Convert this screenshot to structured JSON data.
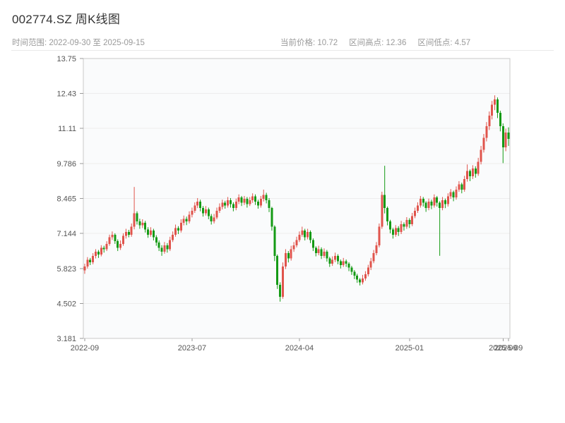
{
  "header": {
    "title": "002774.SZ 周K线图",
    "date_range_label": "时间范围: 2022-09-30 至 2025-09-15",
    "stats": {
      "current": "当前价格: 10.72",
      "high": "区间高点: 12.36",
      "low": "区间低点: 4.57"
    }
  },
  "chart_data": {
    "type": "candlestick",
    "title": "002774.SZ 周K线图",
    "interval": "weekly",
    "start_date": "2022-09-30",
    "end_date": "2025-09-15",
    "current_price": 10.72,
    "range_high": 12.36,
    "range_low": 4.57,
    "ylim": [
      3.181,
      13.75
    ],
    "y_ticks": [
      {
        "value": 3.181,
        "label": "3.181"
      },
      {
        "value": 4.502,
        "label": "4.502"
      },
      {
        "value": 5.823,
        "label": "5.823"
      },
      {
        "value": 7.144,
        "label": "7.144"
      },
      {
        "value": 8.465,
        "label": "8.465"
      },
      {
        "value": 9.786,
        "label": "9.786"
      },
      {
        "value": 11.11,
        "label": "11.11"
      },
      {
        "value": 12.43,
        "label": "12.43"
      },
      {
        "value": 13.75,
        "label": "13.75"
      }
    ],
    "x_ticks": [
      {
        "index": 0,
        "label": "2022-09"
      },
      {
        "index": 39,
        "label": "2023-07"
      },
      {
        "index": 78,
        "label": "2024-04"
      },
      {
        "index": 118,
        "label": "2025-01"
      },
      {
        "index": 152,
        "label": "2025-09"
      },
      {
        "index": 154,
        "label": "2025-09"
      }
    ],
    "colors": {
      "up": "#e0544c",
      "down": "#149a14",
      "grid": "#ededed",
      "axis": "#c9c9c9",
      "tick_text": "#555555",
      "plot_bg": "#fafbfc"
    },
    "candles": [
      [
        5.75,
        6.0,
        5.62,
        5.9
      ],
      [
        5.9,
        6.25,
        5.82,
        6.15
      ],
      [
        6.15,
        6.22,
        5.95,
        6.05
      ],
      [
        6.05,
        6.4,
        5.98,
        6.3
      ],
      [
        6.3,
        6.55,
        6.2,
        6.45
      ],
      [
        6.45,
        6.52,
        6.22,
        6.35
      ],
      [
        6.35,
        6.7,
        6.28,
        6.6
      ],
      [
        6.6,
        6.68,
        6.42,
        6.55
      ],
      [
        6.55,
        6.85,
        6.48,
        6.75
      ],
      [
        6.75,
        7.1,
        6.68,
        7.0
      ],
      [
        7.0,
        7.22,
        6.9,
        7.1
      ],
      [
        7.1,
        7.15,
        6.75,
        6.85
      ],
      [
        6.85,
        6.92,
        6.48,
        6.6
      ],
      [
        6.6,
        6.88,
        6.52,
        6.75
      ],
      [
        6.75,
        7.15,
        6.68,
        7.05
      ],
      [
        7.05,
        7.32,
        6.95,
        7.2
      ],
      [
        7.2,
        7.28,
        7.0,
        7.1
      ],
      [
        7.1,
        7.52,
        7.02,
        7.4
      ],
      [
        7.4,
        8.9,
        7.3,
        7.9
      ],
      [
        7.9,
        7.98,
        7.48,
        7.6
      ],
      [
        7.6,
        7.7,
        7.32,
        7.45
      ],
      [
        7.45,
        7.68,
        7.35,
        7.55
      ],
      [
        7.55,
        7.62,
        7.18,
        7.3
      ],
      [
        7.3,
        7.38,
        6.98,
        7.1
      ],
      [
        7.1,
        7.38,
        7.02,
        7.25
      ],
      [
        7.25,
        7.32,
        6.88,
        7.0
      ],
      [
        7.0,
        7.08,
        6.68,
        6.8
      ],
      [
        6.8,
        6.88,
        6.48,
        6.6
      ],
      [
        6.6,
        6.7,
        6.3,
        6.45
      ],
      [
        6.45,
        6.82,
        6.38,
        6.7
      ],
      [
        6.7,
        6.78,
        6.42,
        6.55
      ],
      [
        6.55,
        7.02,
        6.48,
        6.9
      ],
      [
        6.9,
        7.22,
        6.82,
        7.1
      ],
      [
        7.1,
        7.48,
        7.02,
        7.35
      ],
      [
        7.35,
        7.42,
        7.12,
        7.25
      ],
      [
        7.25,
        7.68,
        7.18,
        7.55
      ],
      [
        7.55,
        7.82,
        7.45,
        7.7
      ],
      [
        7.7,
        7.78,
        7.46,
        7.6
      ],
      [
        7.6,
        7.98,
        7.52,
        7.85
      ],
      [
        7.85,
        8.12,
        7.75,
        8.0
      ],
      [
        8.0,
        8.32,
        7.92,
        8.2
      ],
      [
        8.2,
        8.48,
        8.1,
        8.35
      ],
      [
        8.35,
        8.42,
        7.98,
        8.1
      ],
      [
        8.1,
        8.18,
        7.78,
        7.9
      ],
      [
        7.9,
        8.18,
        7.82,
        8.05
      ],
      [
        8.05,
        8.12,
        7.68,
        7.8
      ],
      [
        7.8,
        7.88,
        7.48,
        7.6
      ],
      [
        7.6,
        7.88,
        7.52,
        7.75
      ],
      [
        7.75,
        8.12,
        7.68,
        8.0
      ],
      [
        8.0,
        8.28,
        7.92,
        8.15
      ],
      [
        8.15,
        8.42,
        8.05,
        8.3
      ],
      [
        8.3,
        8.38,
        8.08,
        8.2
      ],
      [
        8.2,
        8.52,
        8.12,
        8.4
      ],
      [
        8.4,
        8.48,
        8.12,
        8.25
      ],
      [
        8.25,
        8.32,
        7.98,
        8.1
      ],
      [
        8.1,
        8.46,
        8.02,
        8.35
      ],
      [
        8.35,
        8.62,
        8.25,
        8.5
      ],
      [
        8.5,
        8.56,
        8.18,
        8.3
      ],
      [
        8.3,
        8.56,
        8.22,
        8.45
      ],
      [
        8.45,
        8.52,
        8.12,
        8.25
      ],
      [
        8.25,
        8.52,
        8.18,
        8.4
      ],
      [
        8.4,
        8.66,
        8.3,
        8.55
      ],
      [
        8.55,
        8.62,
        8.22,
        8.35
      ],
      [
        8.35,
        8.42,
        8.08,
        8.2
      ],
      [
        8.2,
        8.56,
        8.12,
        8.45
      ],
      [
        8.45,
        8.8,
        8.35,
        8.6
      ],
      [
        8.6,
        8.68,
        8.28,
        8.4
      ],
      [
        8.4,
        8.48,
        7.95,
        8.1
      ],
      [
        8.1,
        8.15,
        7.25,
        7.4
      ],
      [
        7.4,
        7.45,
        6.1,
        6.3
      ],
      [
        6.3,
        6.35,
        5.05,
        5.2
      ],
      [
        5.2,
        5.3,
        4.57,
        4.75
      ],
      [
        4.75,
        6.05,
        4.68,
        5.9
      ],
      [
        5.9,
        6.55,
        5.8,
        6.4
      ],
      [
        6.4,
        6.48,
        6.05,
        6.2
      ],
      [
        6.2,
        6.68,
        6.12,
        6.55
      ],
      [
        6.55,
        6.82,
        6.45,
        6.7
      ],
      [
        6.7,
        7.02,
        6.62,
        6.9
      ],
      [
        6.9,
        7.22,
        6.82,
        7.1
      ],
      [
        7.1,
        7.4,
        7.02,
        7.25
      ],
      [
        7.25,
        7.32,
        6.88,
        7.0
      ],
      [
        7.0,
        7.32,
        6.92,
        7.2
      ],
      [
        7.2,
        7.26,
        6.78,
        6.9
      ],
      [
        6.9,
        6.96,
        6.48,
        6.6
      ],
      [
        6.6,
        6.66,
        6.28,
        6.4
      ],
      [
        6.4,
        6.68,
        6.32,
        6.55
      ],
      [
        6.55,
        6.62,
        6.18,
        6.3
      ],
      [
        6.3,
        6.58,
        6.22,
        6.45
      ],
      [
        6.45,
        6.52,
        6.08,
        6.2
      ],
      [
        6.2,
        6.26,
        5.88,
        6.0
      ],
      [
        6.0,
        6.28,
        5.92,
        6.15
      ],
      [
        6.15,
        6.42,
        6.06,
        6.3
      ],
      [
        6.3,
        6.36,
        5.98,
        6.1
      ],
      [
        6.1,
        6.16,
        5.82,
        5.95
      ],
      [
        5.95,
        6.22,
        5.88,
        6.1
      ],
      [
        6.1,
        6.16,
        5.88,
        6.0
      ],
      [
        6.0,
        6.06,
        5.72,
        5.85
      ],
      [
        5.85,
        5.92,
        5.58,
        5.7
      ],
      [
        5.7,
        5.76,
        5.42,
        5.55
      ],
      [
        5.55,
        5.62,
        5.28,
        5.4
      ],
      [
        5.4,
        5.46,
        5.18,
        5.3
      ],
      [
        5.3,
        5.58,
        5.22,
        5.45
      ],
      [
        5.45,
        5.72,
        5.36,
        5.6
      ],
      [
        5.6,
        5.96,
        5.52,
        5.85
      ],
      [
        5.85,
        6.22,
        5.76,
        6.1
      ],
      [
        6.1,
        6.52,
        6.02,
        6.4
      ],
      [
        6.4,
        6.82,
        6.32,
        6.7
      ],
      [
        6.7,
        7.52,
        6.62,
        7.4
      ],
      [
        7.4,
        8.72,
        7.32,
        8.6
      ],
      [
        8.6,
        9.7,
        7.9,
        8.1
      ],
      [
        8.1,
        8.16,
        7.45,
        7.6
      ],
      [
        7.6,
        7.66,
        7.15,
        7.3
      ],
      [
        7.3,
        7.36,
        6.95,
        7.1
      ],
      [
        7.1,
        7.46,
        7.02,
        7.35
      ],
      [
        7.35,
        7.42,
        7.05,
        7.2
      ],
      [
        7.2,
        7.62,
        7.12,
        7.5
      ],
      [
        7.5,
        7.56,
        7.25,
        7.4
      ],
      [
        7.4,
        7.76,
        7.32,
        7.65
      ],
      [
        7.65,
        7.72,
        7.35,
        7.5
      ],
      [
        7.5,
        7.92,
        7.42,
        7.8
      ],
      [
        7.8,
        8.12,
        7.72,
        8.0
      ],
      [
        8.0,
        8.32,
        7.92,
        8.2
      ],
      [
        8.2,
        8.56,
        8.12,
        8.45
      ],
      [
        8.45,
        8.52,
        8.16,
        8.3
      ],
      [
        8.3,
        8.36,
        7.96,
        8.1
      ],
      [
        8.1,
        8.46,
        8.02,
        8.35
      ],
      [
        8.35,
        8.42,
        8.06,
        8.2
      ],
      [
        8.2,
        8.62,
        8.12,
        8.5
      ],
      [
        8.5,
        8.56,
        8.16,
        8.3
      ],
      [
        8.3,
        8.36,
        6.3,
        8.1
      ],
      [
        8.1,
        8.52,
        8.02,
        8.4
      ],
      [
        8.4,
        8.46,
        8.1,
        8.25
      ],
      [
        8.25,
        8.66,
        8.16,
        8.55
      ],
      [
        8.55,
        8.82,
        8.45,
        8.7
      ],
      [
        8.7,
        8.76,
        8.36,
        8.5
      ],
      [
        8.5,
        8.92,
        8.42,
        8.8
      ],
      [
        8.8,
        9.12,
        8.72,
        9.0
      ],
      [
        9.0,
        9.06,
        8.66,
        8.8
      ],
      [
        8.8,
        9.32,
        8.72,
        9.2
      ],
      [
        9.2,
        9.75,
        9.1,
        9.5
      ],
      [
        9.5,
        9.56,
        9.12,
        9.3
      ],
      [
        9.3,
        9.72,
        9.2,
        9.6
      ],
      [
        9.6,
        9.68,
        9.25,
        9.4
      ],
      [
        9.4,
        10.0,
        9.32,
        9.85
      ],
      [
        9.85,
        10.45,
        9.75,
        10.3
      ],
      [
        10.3,
        10.9,
        10.2,
        10.75
      ],
      [
        10.75,
        11.35,
        10.62,
        11.2
      ],
      [
        11.2,
        11.75,
        11.05,
        11.6
      ],
      [
        11.6,
        12.15,
        11.45,
        12.0
      ],
      [
        12.0,
        12.36,
        11.8,
        12.2
      ],
      [
        12.2,
        12.28,
        11.5,
        11.7
      ],
      [
        11.7,
        11.78,
        11.0,
        11.2
      ],
      [
        11.2,
        11.3,
        9.8,
        10.4
      ],
      [
        10.4,
        11.1,
        10.25,
        10.95
      ],
      [
        10.95,
        11.15,
        10.45,
        10.72
      ]
    ]
  }
}
